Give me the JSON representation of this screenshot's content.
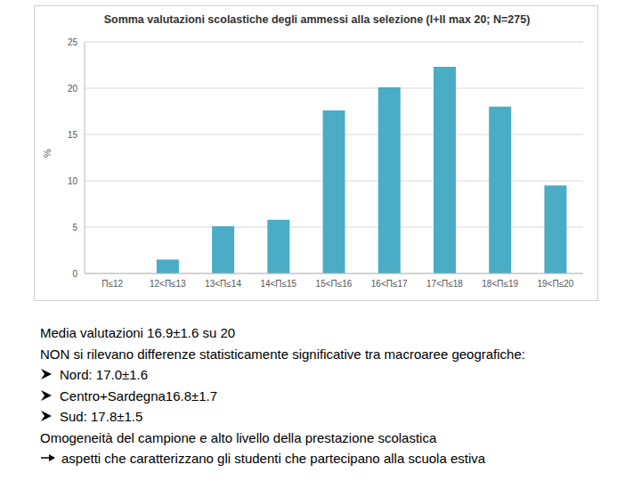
{
  "chart_data": {
    "type": "bar",
    "title": "Somma valutazioni scolastiche degli ammessi alla selezione (I+II max 20; N=275)",
    "ylabel": "%",
    "categories": [
      "Π≤12",
      "12<Π≤13",
      "13<Π≤14",
      "14<Π≤15",
      "15<Π≤16",
      "16<Π≤17",
      "17<Π≤18",
      "18<Π≤19",
      "19<Π≤20"
    ],
    "values": [
      0,
      1.5,
      5.1,
      5.8,
      17.6,
      20.1,
      22.3,
      18.0,
      9.5
    ],
    "color": "#4aacc5",
    "ylim": [
      0,
      25
    ],
    "yticks": [
      0,
      5,
      10,
      15,
      20,
      25
    ],
    "grid": true
  },
  "text": {
    "summary": "Media valutazioni 16.9±1.6 su 20",
    "note": "NON si rilevano differenze statisticamente significative tra macroaree geografiche:",
    "regions": [
      "Nord: 17.0±1.6",
      "Centro+Sardegna16.8±1.7",
      "Sud: 17.8±1.5"
    ],
    "conclusion": "Omogeneità del campione e alto livello della prestazione scolastica",
    "consequence": "aspetti che caratterizzano gli studenti che partecipano alla scuola estiva"
  }
}
